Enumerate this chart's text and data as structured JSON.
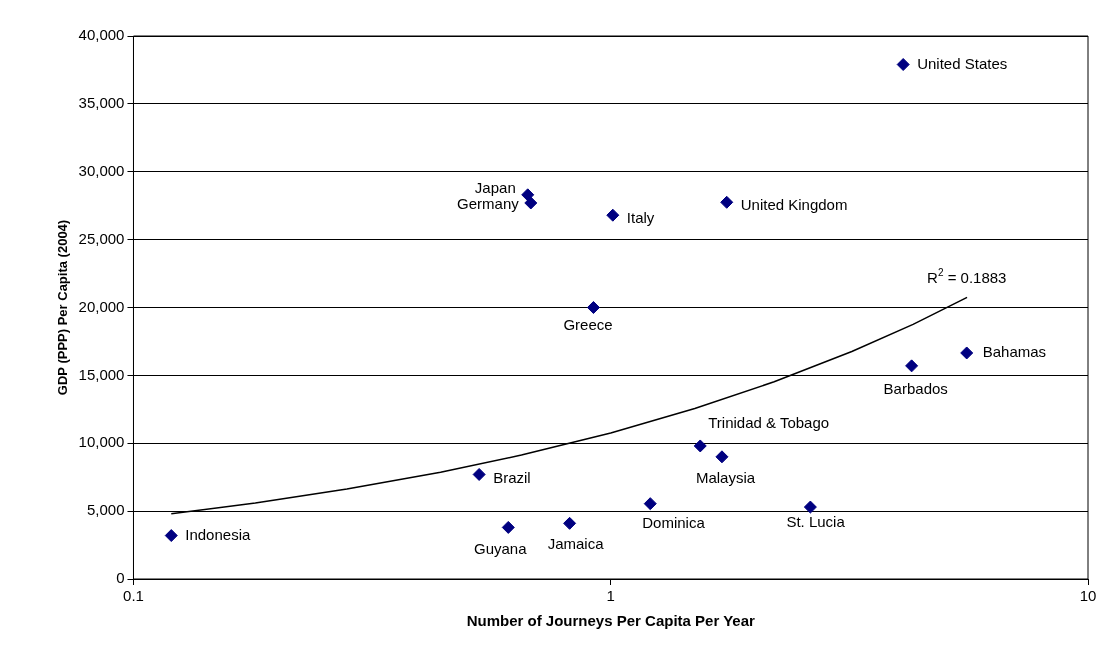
{
  "chart_data": {
    "type": "scatter",
    "xlabel": "Number of Journeys Per Capita Per Year",
    "ylabel": "GDP (PPP) Per Capita (2004)",
    "series": [
      {
        "color": "#000080",
        "marker": "diamond",
        "x": [
          0.12,
          0.53,
          0.61,
          0.82,
          0.92,
          0.67,
          0.68,
          1.01,
          1.75,
          4.1,
          1.21,
          1.54,
          1.71,
          2.62,
          4.27,
          5.57
        ],
        "values": [
          3200,
          7700,
          3800,
          4100,
          20000,
          28300,
          27700,
          26800,
          27750,
          37900,
          5550,
          9800,
          9000,
          5300,
          15700,
          16650
        ]
      },
      {
        "type": "line",
        "color": "#000000",
        "marker": "none",
        "line_style": "solid",
        "x": [
          0.12,
          0.18,
          0.28,
          0.44,
          0.65,
          1,
          1.5,
          2.2,
          3.2,
          4.3,
          5.58
        ],
        "values": [
          4800,
          5600,
          6630,
          7870,
          9130,
          10760,
          12560,
          14530,
          16760,
          18760,
          20750
        ]
      }
    ],
    "xlim": [
      0.1,
      10
    ],
    "xticks": [
      0.1,
      1,
      10
    ],
    "log": "x",
    "ylim": [
      0,
      40000
    ],
    "yticks": [
      0,
      {
        "value": 5000,
        "label": "5,000"
      },
      {
        "value": 10000,
        "label": "10,000"
      },
      {
        "value": 15000,
        "label": "15,000"
      },
      {
        "value": 20000,
        "label": "20,000"
      },
      {
        "value": 25000,
        "label": "25,000"
      },
      {
        "value": 30000,
        "label": "30,000"
      },
      {
        "value": 35000,
        "label": "35,000"
      },
      {
        "value": 40000,
        "label": "40,000"
      }
    ],
    "grid": "y",
    "legend": false,
    "annotations": [
      {
        "text": "Indonesia",
        "x": 0.12,
        "y": 3200
      },
      {
        "text": "Brazil",
        "x": 0.53,
        "y": 7700
      },
      {
        "text": "Guyana",
        "x": 0.61,
        "y": 3800
      },
      {
        "text": "Jamaica",
        "x": 0.82,
        "y": 4100
      },
      {
        "text": "Greece",
        "x": 0.92,
        "y": 20000
      },
      {
        "text": "Japan",
        "x": 0.67,
        "y": 28300
      },
      {
        "text": "Germany",
        "x": 0.68,
        "y": 27700
      },
      {
        "text": "Italy",
        "x": 1.01,
        "y": 26800
      },
      {
        "text": "United Kingdom",
        "x": 1.75,
        "y": 27750
      },
      {
        "text": "United States",
        "x": 4.1,
        "y": 37900
      },
      {
        "text": "Dominica",
        "x": 1.21,
        "y": 5550
      },
      {
        "text": "Trinidad & Tobago",
        "x": 1.54,
        "y": 9800
      },
      {
        "text": "Malaysia",
        "x": 1.71,
        "y": 9000
      },
      {
        "text": "St. Lucia",
        "x": 2.62,
        "y": 5300
      },
      {
        "text": "Barbados",
        "x": 4.27,
        "y": 15700
      },
      {
        "text": "Bahamas",
        "x": 5.57,
        "y": 16650
      },
      {
        "text": "R$^{2}$ = 0.1883",
        "x": 5.58,
        "y": 20750
      }
    ]
  }
}
